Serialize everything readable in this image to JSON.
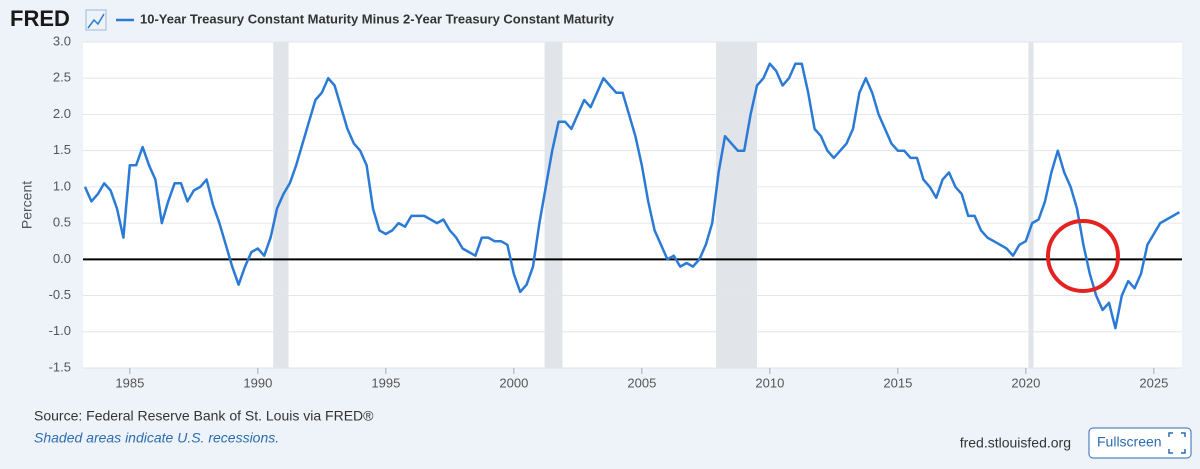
{
  "logo": "FRED",
  "chart_data": {
    "type": "line",
    "y_label": "Percent",
    "source": "Source: Federal Reserve Bank of St. Louis via FRED®",
    "note": "Shaded areas indicate U.S. recessions.",
    "xlim": [
      1983.17,
      2026.1
    ],
    "xticks": [
      1985,
      1990,
      1995,
      2000,
      2005,
      2010,
      2015,
      2020,
      2025
    ],
    "ylim": [
      -1.5,
      3
    ],
    "yticks": [
      {
        "value": 3,
        "label": "3.0"
      },
      2.5,
      {
        "value": 2,
        "label": "2.0"
      },
      1.5,
      {
        "value": 1,
        "label": "1.0"
      },
      0.5,
      {
        "value": 0,
        "label": "0.0"
      },
      -0.5,
      {
        "value": -1,
        "label": "-1.0"
      },
      -1.5
    ],
    "grid": true,
    "recessions": [
      [
        1990.6,
        1991.2
      ],
      [
        2001.2,
        2001.9
      ],
      [
        2007.9,
        2009.5
      ],
      [
        2020.1,
        2020.3
      ]
    ],
    "recession_color": "#e1e4e9",
    "series": [
      {
        "name": "10-Year Treasury Constant Maturity Minus 2-Year Treasury Constant Maturity",
        "color": "#2b7bd6",
        "x": [
          1983.25,
          1983.5,
          1983.75,
          1984,
          1984.25,
          1984.5,
          1984.75,
          1985,
          1985.25,
          1985.5,
          1985.75,
          1986,
          1986.25,
          1986.5,
          1986.75,
          1987,
          1987.25,
          1987.5,
          1987.75,
          1988,
          1988.25,
          1988.5,
          1988.75,
          1989,
          1989.25,
          1989.5,
          1989.75,
          1990,
          1990.25,
          1990.5,
          1990.75,
          1991,
          1991.25,
          1991.5,
          1991.75,
          1992,
          1992.25,
          1992.5,
          1992.75,
          1993,
          1993.25,
          1993.5,
          1993.75,
          1994,
          1994.25,
          1994.5,
          1994.75,
          1995,
          1995.25,
          1995.5,
          1995.75,
          1996,
          1996.25,
          1996.5,
          1996.75,
          1997,
          1997.25,
          1997.5,
          1997.75,
          1998,
          1998.25,
          1998.5,
          1998.75,
          1999,
          1999.25,
          1999.5,
          1999.75,
          2000,
          2000.25,
          2000.5,
          2000.75,
          2001,
          2001.25,
          2001.5,
          2001.75,
          2002,
          2002.25,
          2002.5,
          2002.75,
          2003,
          2003.25,
          2003.5,
          2003.75,
          2004,
          2004.25,
          2004.5,
          2004.75,
          2005,
          2005.25,
          2005.5,
          2005.75,
          2006,
          2006.25,
          2006.5,
          2006.75,
          2007,
          2007.25,
          2007.5,
          2007.75,
          2008,
          2008.25,
          2008.5,
          2008.75,
          2009,
          2009.25,
          2009.5,
          2009.75,
          2010,
          2010.25,
          2010.5,
          2010.75,
          2011,
          2011.25,
          2011.5,
          2011.75,
          2012,
          2012.25,
          2012.5,
          2012.75,
          2013,
          2013.25,
          2013.5,
          2013.75,
          2014,
          2014.25,
          2014.5,
          2014.75,
          2015,
          2015.25,
          2015.5,
          2015.75,
          2016,
          2016.25,
          2016.5,
          2016.75,
          2017,
          2017.25,
          2017.5,
          2017.75,
          2018,
          2018.25,
          2018.5,
          2018.75,
          2019,
          2019.25,
          2019.5,
          2019.75,
          2020,
          2020.25,
          2020.5,
          2020.75,
          2021,
          2021.25,
          2021.5,
          2021.75,
          2022,
          2022.25,
          2022.5,
          2022.75,
          2023,
          2023.25,
          2023.5,
          2023.75,
          2024,
          2024.25,
          2024.5,
          2024.75,
          2025,
          2025.25,
          2025.5,
          2025.75,
          2026
        ],
        "values": [
          1.0,
          0.8,
          0.9,
          1.05,
          0.95,
          0.7,
          0.3,
          1.3,
          1.3,
          1.55,
          1.3,
          1.1,
          0.5,
          0.8,
          1.05,
          1.05,
          0.8,
          0.95,
          1.0,
          1.1,
          0.75,
          0.5,
          0.2,
          -0.1,
          -0.35,
          -0.1,
          0.1,
          0.15,
          0.05,
          0.3,
          0.7,
          0.9,
          1.05,
          1.3,
          1.6,
          1.9,
          2.2,
          2.3,
          2.5,
          2.4,
          2.1,
          1.8,
          1.6,
          1.5,
          1.3,
          0.7,
          0.4,
          0.35,
          0.4,
          0.5,
          0.45,
          0.6,
          0.6,
          0.6,
          0.55,
          0.5,
          0.55,
          0.4,
          0.3,
          0.15,
          0.1,
          0.05,
          0.3,
          0.3,
          0.25,
          0.25,
          0.2,
          -0.2,
          -0.45,
          -0.35,
          -0.1,
          0.5,
          1.0,
          1.5,
          1.9,
          1.9,
          1.8,
          2.0,
          2.2,
          2.1,
          2.3,
          2.5,
          2.4,
          2.3,
          2.3,
          2.0,
          1.7,
          1.3,
          0.8,
          0.4,
          0.2,
          0.0,
          0.05,
          -0.1,
          -0.05,
          -0.1,
          0.0,
          0.2,
          0.5,
          1.2,
          1.7,
          1.6,
          1.5,
          1.5,
          2.0,
          2.4,
          2.5,
          2.7,
          2.6,
          2.4,
          2.5,
          2.7,
          2.7,
          2.3,
          1.8,
          1.7,
          1.5,
          1.4,
          1.5,
          1.6,
          1.8,
          2.3,
          2.5,
          2.3,
          2.0,
          1.8,
          1.6,
          1.5,
          1.5,
          1.4,
          1.4,
          1.1,
          1.0,
          0.85,
          1.1,
          1.2,
          1.0,
          0.9,
          0.6,
          0.6,
          0.4,
          0.3,
          0.25,
          0.2,
          0.15,
          0.05,
          0.2,
          0.25,
          0.5,
          0.55,
          0.8,
          1.2,
          1.5,
          1.2,
          1.0,
          0.7,
          0.2,
          -0.2,
          -0.5,
          -0.7,
          -0.6,
          -0.95,
          -0.5,
          -0.3,
          -0.4,
          -0.2,
          0.2,
          0.35,
          0.5,
          0.55,
          0.6,
          0.65
        ]
      }
    ]
  },
  "site": "fred.stlouisfed.org",
  "fullscreen": "Fullscreen"
}
